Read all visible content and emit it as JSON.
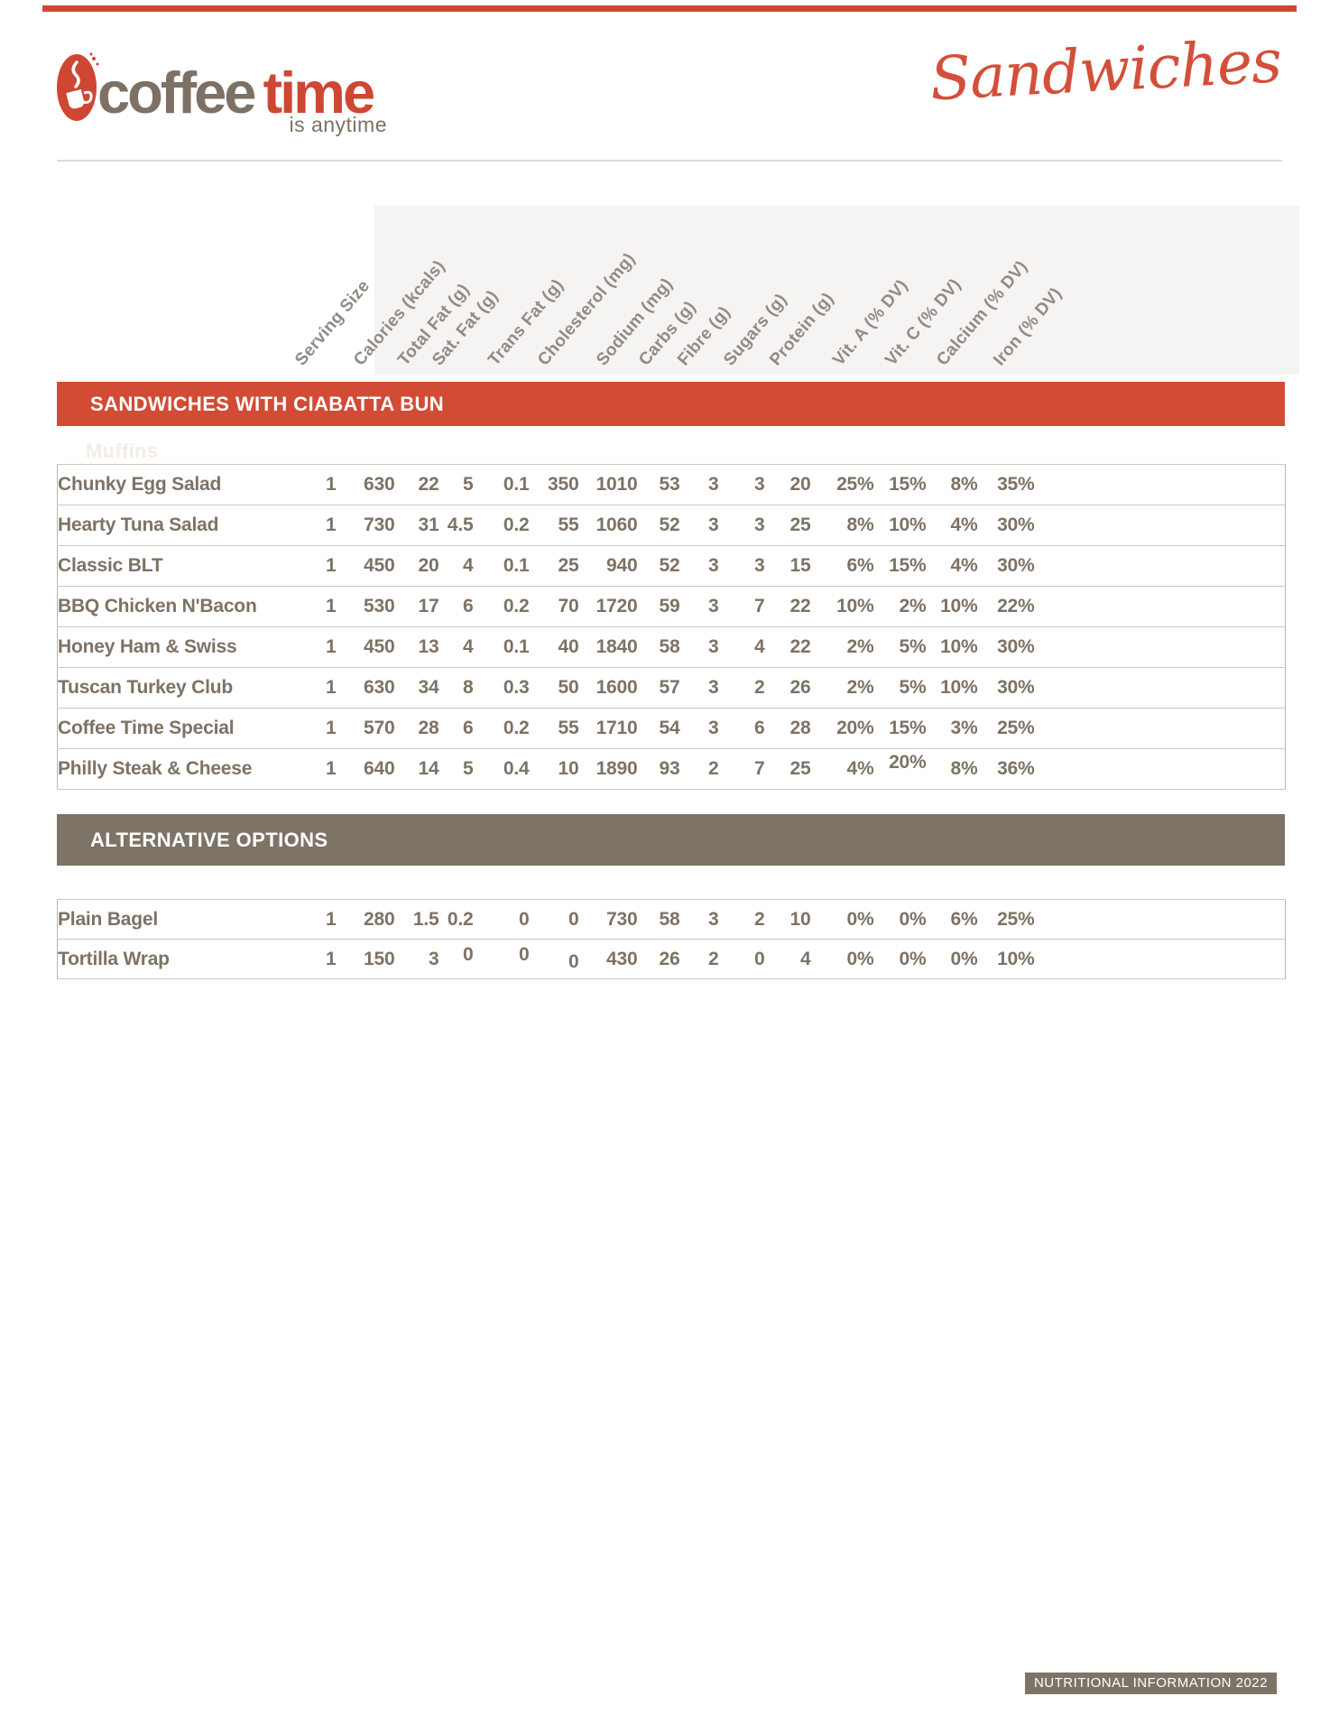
{
  "logo": {
    "brand_first": "coffee",
    "brand_second": "time",
    "tagline": "is anytime",
    "icon": "coffee-cup-icon",
    "gray_color": "#7c7164",
    "red_color": "#ce4733"
  },
  "header": {
    "script_title": "Sandwiches",
    "accent_color": "#d2503a"
  },
  "columns": [
    "Serving Size",
    "Calories (kcals)",
    "Total Fat (g)",
    "Sat. Fat (g)",
    "Trans Fat (g)",
    "Cholesterol (mg)",
    "Sodium (mg)",
    "Carbs (g)",
    "Fibre (g)",
    "Sugars (g)",
    "Protein (g)",
    "Vit. A (% DV)",
    "Vit. C (% DV)",
    "Calcium (% DV)",
    "Iron (% DV)"
  ],
  "sections": [
    {
      "title": "SANDWICHES WITH CIABATTA BUN",
      "bar_color": "#d24b35",
      "ghost_label": "Muffins",
      "rows": [
        {
          "name": "Chunky Egg Salad",
          "values": [
            "1",
            "630",
            "22",
            "5",
            "0.1",
            "350",
            "1010",
            "53",
            "3",
            "3",
            "20",
            "25%",
            "15%",
            "8%",
            "35%"
          ]
        },
        {
          "name": "Hearty Tuna Salad",
          "values": [
            "1",
            "730",
            "31",
            "4.5",
            "0.2",
            "55",
            "1060",
            "52",
            "3",
            "3",
            "25",
            "8%",
            "10%",
            "4%",
            "30%"
          ]
        },
        {
          "name": "Classic BLT",
          "values": [
            "1",
            "450",
            "20",
            "4",
            "0.1",
            "25",
            "940",
            "52",
            "3",
            "3",
            "15",
            "6%",
            "15%",
            "4%",
            "30%"
          ]
        },
        {
          "name": "BBQ Chicken N'Bacon",
          "values": [
            "1",
            "530",
            "17",
            "6",
            "0.2",
            "70",
            "1720",
            "59",
            "3",
            "7",
            "22",
            "10%",
            "2%",
            "10%",
            "22%"
          ]
        },
        {
          "name": "Honey Ham & Swiss",
          "values": [
            "1",
            "450",
            "13",
            "4",
            "0.1",
            "40",
            "1840",
            "58",
            "3",
            "4",
            "22",
            "2%",
            "5%",
            "10%",
            "30%"
          ]
        },
        {
          "name": "Tuscan Turkey Club",
          "values": [
            "1",
            "630",
            "34",
            "8",
            "0.3",
            "50",
            "1600",
            "57",
            "3",
            "2",
            "26",
            "2%",
            "5%",
            "10%",
            "30%"
          ]
        },
        {
          "name": "Coffee Time Special",
          "values": [
            "1",
            "570",
            "28",
            "6",
            "0.2",
            "55",
            "1710",
            "54",
            "3",
            "6",
            "28",
            "20%",
            "15%",
            "3%",
            "25%"
          ]
        },
        {
          "name": "Philly Steak & Cheese",
          "values": [
            "1",
            "640",
            "14",
            "5",
            "0.4",
            "10",
            "1890",
            "93",
            "2",
            "7",
            "25",
            "4%",
            "20%",
            "8%",
            "36%"
          ],
          "nudges": {
            "12": -7
          }
        }
      ]
    },
    {
      "title": "ALTERNATIVE OPTIONS",
      "bar_color": "#7d7366",
      "rows": [
        {
          "name": "Plain Bagel",
          "values": [
            "1",
            "280",
            "1.5",
            "0.2",
            "0",
            "0",
            "730",
            "58",
            "3",
            "2",
            "10",
            "0%",
            "0%",
            "6%",
            "25%"
          ]
        },
        {
          "name": "Tortilla Wrap",
          "values": [
            "1",
            "150",
            "3",
            "0",
            "0",
            "0",
            "430",
            "26",
            "2",
            "0",
            "4",
            "0%",
            "0%",
            "0%",
            "10%"
          ],
          "nudges": {
            "3": -5,
            "4": -5,
            "5": 3
          }
        }
      ]
    }
  ],
  "footer": {
    "badge": "NUTRITIONAL INFORMATION 2022",
    "badge_color": "#7d7366"
  }
}
